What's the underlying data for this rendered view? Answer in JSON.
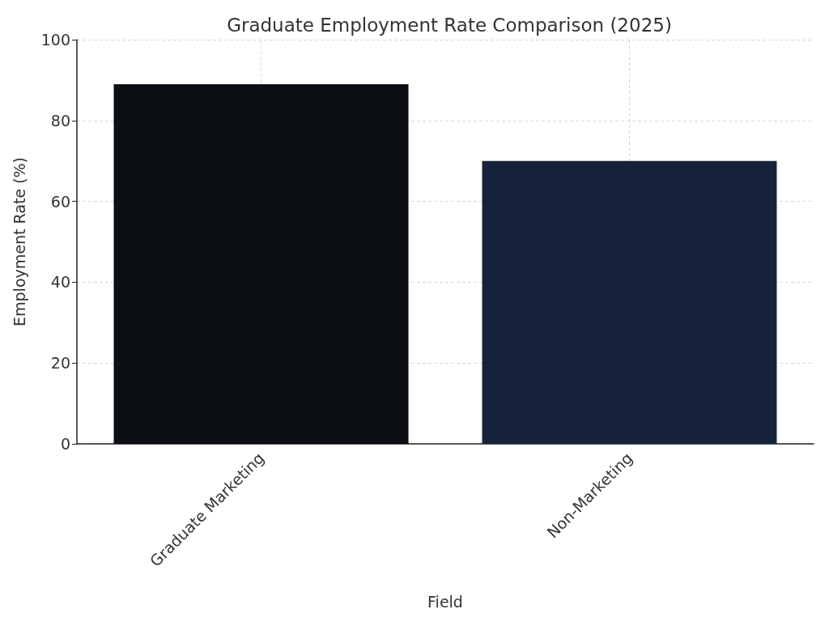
{
  "chart_data": {
    "type": "bar",
    "title": "Graduate Employment Rate Comparison (2025)",
    "xlabel": "Field",
    "ylabel": "Employment Rate (%)",
    "categories": [
      "Graduate Marketing",
      "Non-Marketing"
    ],
    "values": [
      89,
      70
    ],
    "colors": [
      "#0c0f14",
      "#16223a"
    ],
    "ylim": [
      0,
      100
    ],
    "yticks": [
      0,
      20,
      40,
      60,
      80,
      100
    ],
    "grid": true
  }
}
